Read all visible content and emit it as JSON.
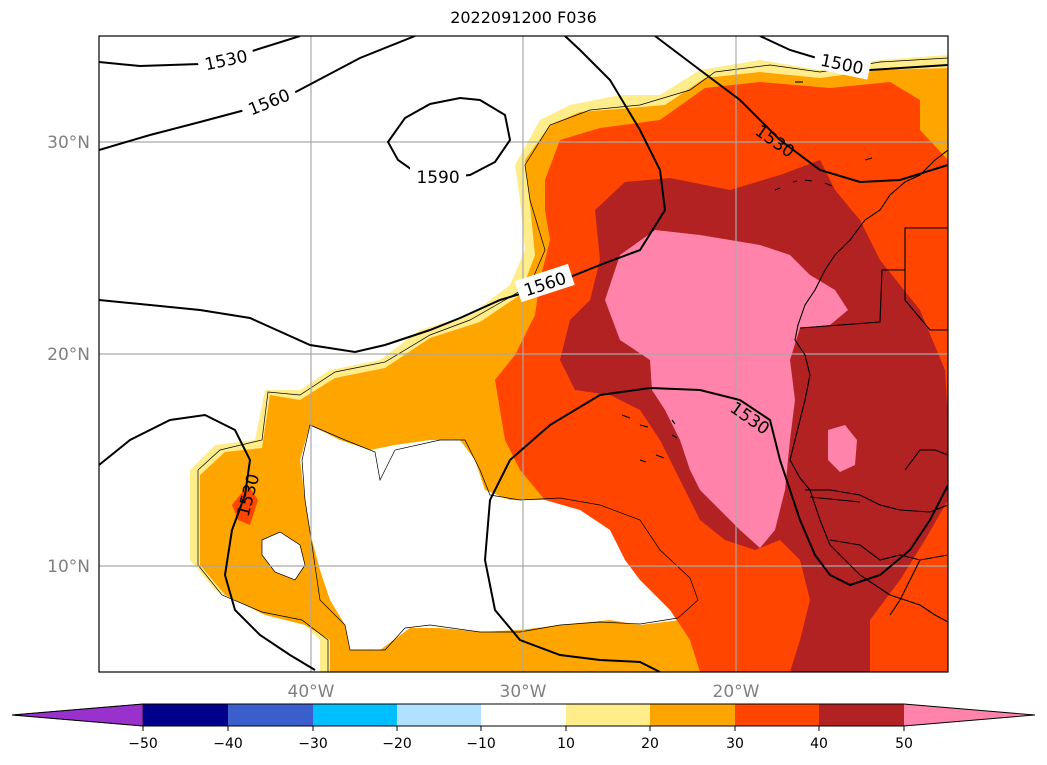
{
  "title": "2022091200 F036",
  "map": {
    "lat_labels": [
      "30°N",
      "20°N",
      "10°N"
    ],
    "lon_labels": [
      "40°W",
      "30°W",
      "20°W"
    ],
    "contour_labels": [
      "1530",
      "1560",
      "1590",
      "1500",
      "1530",
      "1560",
      "1530",
      "1530"
    ]
  },
  "colorbar": {
    "ticks": [
      "−50",
      "−40",
      "−30",
      "−20",
      "−10",
      "10",
      "20",
      "30",
      "40",
      "50"
    ],
    "colors": {
      "below_min": "#9932cc",
      "b_m50_m40": "#00008b",
      "b_m40_m30": "#3a5fcd",
      "b_m30_m20": "#00bfff",
      "b_m20_m10": "#b0e2ff",
      "b_m10_10": "#ffffff",
      "b_10_20": "#ffec8b",
      "b_20_30": "#ffa500",
      "b_30_40": "#ff4500",
      "b_40_50": "#b22222",
      "above_max": "#ff83aa"
    }
  }
}
